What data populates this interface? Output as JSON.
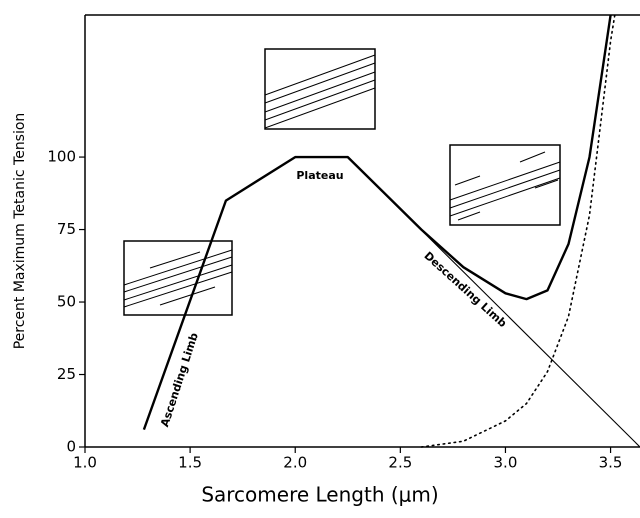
{
  "chart_data": {
    "type": "line",
    "x_label": "Sarcomere Length (μm)",
    "y_label": "Percent Maximum Tetanic Tension",
    "annotations": [
      "Plateau",
      "Ascending Limb",
      "Descending Limb"
    ],
    "xlim": [
      1.0,
      3.64
    ],
    "ylim": [
      0,
      149
    ],
    "xticks": [
      {
        "value": 1,
        "label": "1.0"
      },
      1.5,
      {
        "value": 2,
        "label": "2.0"
      },
      2.5,
      {
        "value": 3,
        "label": "3.0"
      },
      3.5
    ],
    "yticks": [
      0,
      25,
      50,
      75,
      100
    ],
    "series": [
      {
        "color": "#000000",
        "style": "solid",
        "width": 2.4,
        "x": [
          1.28,
          1.67,
          2.0,
          2.25,
          2.6,
          2.8,
          3.0,
          3.1,
          3.2,
          3.3,
          3.4,
          3.5
        ],
        "values": [
          6,
          85,
          100,
          100,
          75,
          62,
          53,
          51,
          54,
          70,
          100,
          149
        ]
      },
      {
        "color": "#000000",
        "style": "solid",
        "width": 1.1,
        "x": [
          2.25,
          3.64
        ],
        "values": [
          100,
          0
        ]
      },
      {
        "color": "#000000",
        "style": "dotted",
        "width": 1.6,
        "x": [
          2.6,
          2.8,
          3.0,
          3.1,
          3.2,
          3.3,
          3.4,
          3.45,
          3.5,
          3.52
        ],
        "values": [
          0,
          2,
          9,
          15,
          26,
          45,
          80,
          110,
          140,
          149
        ]
      }
    ]
  }
}
